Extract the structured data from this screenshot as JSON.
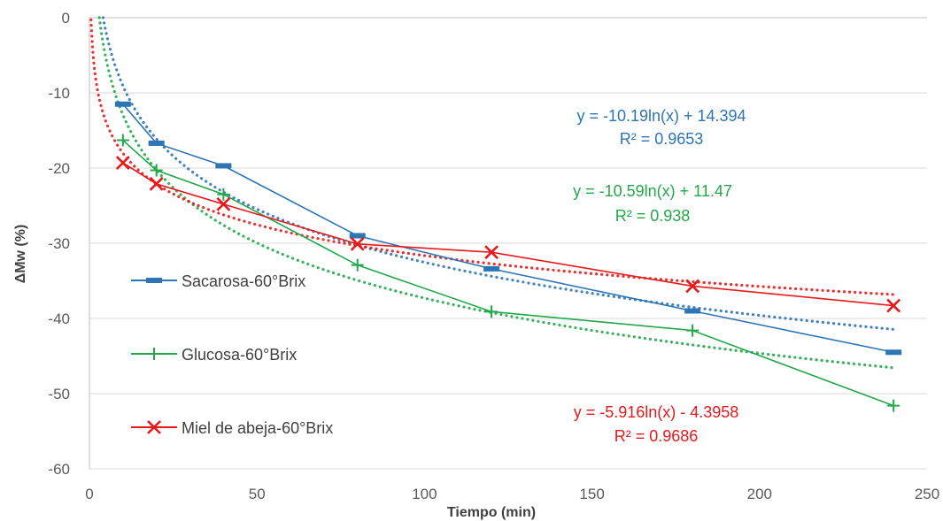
{
  "chart_data": {
    "type": "line",
    "title": "",
    "xlabel": "Tiempo (min)",
    "ylabel": "ΔMw (%)",
    "xlim": [
      0,
      250
    ],
    "ylim": [
      -60,
      0
    ],
    "x_ticks": [
      0,
      50,
      100,
      150,
      200,
      250
    ],
    "y_ticks": [
      0,
      -10,
      -20,
      -30,
      -40,
      -50,
      -60
    ],
    "x_tick_labels": [
      "0",
      "50",
      "100",
      "150",
      "200",
      "250"
    ],
    "y_tick_labels": [
      "0",
      "-10",
      "-20",
      "-30",
      "-40",
      "-50",
      "-60"
    ],
    "grid": "horizontal",
    "legend_position": "left",
    "series": [
      {
        "name": "Sacarosa-60°Brix",
        "color": "#2E75B6",
        "marker": "dash",
        "x": [
          10,
          20,
          40,
          80,
          120,
          180,
          240
        ],
        "y": [
          -11.5,
          -16.7,
          -19.7,
          -29,
          -33.4,
          -39,
          -44.5
        ],
        "trendline": {
          "type": "log",
          "a": -10.19,
          "b": 14.394,
          "x_from": 4.1,
          "x_to": 240
        },
        "equation": "y = -10.19ln(x) + 14.394",
        "r2": "R² = 0.9653"
      },
      {
        "name": "Glucosa-60°Brix",
        "color": "#22A84A",
        "marker": "plus",
        "x": [
          10,
          20,
          40,
          80,
          120,
          180,
          240
        ],
        "y": [
          -16.3,
          -20.3,
          -23.5,
          -32.9,
          -39.1,
          -41.6,
          -51.6
        ],
        "trendline": {
          "type": "log",
          "a": -10.59,
          "b": 11.47,
          "x_from": 2.95,
          "x_to": 240
        },
        "equation": "y = -10.59ln(x) + 11.47",
        "r2": "R² = 0.938"
      },
      {
        "name": "Miel de abeja-60°Brix",
        "color": "#E8191B",
        "marker": "x",
        "x": [
          10,
          20,
          40,
          80,
          120,
          180,
          240
        ],
        "y": [
          -19.3,
          -22.1,
          -24.8,
          -30.1,
          -31.2,
          -35.7,
          -38.3
        ],
        "trendline": {
          "type": "log",
          "a": -5.916,
          "b": -4.3958,
          "x_from": 0.5,
          "x_to": 240
        },
        "equation": "y = -5.916ln(x) - 4.3958",
        "r2": "R² = 0.9686"
      }
    ]
  }
}
